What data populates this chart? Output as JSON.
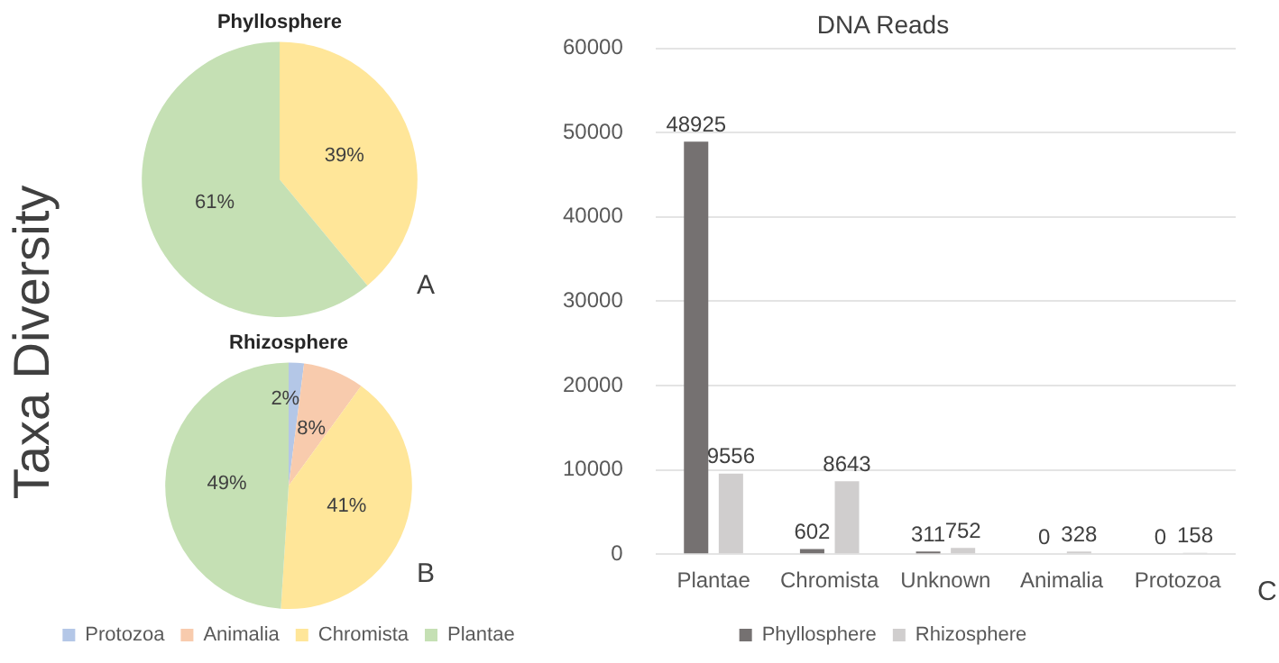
{
  "chart_data": [
    {
      "type": "pie",
      "title": "Phyllosphere",
      "categories": [
        null,
        null
      ],
      "values": [
        39,
        61
      ],
      "colors": [
        "#ffe699",
        "#c5e0b4"
      ],
      "value_labels": [
        "39%",
        "61%"
      ],
      "legend": false,
      "annotations": [
        "Taxa Diversity",
        "A"
      ]
    },
    {
      "type": "pie",
      "title": "Rhizosphere",
      "categories": [
        "Protozoa",
        "Animalia",
        "Chromista",
        "Plantae"
      ],
      "values": [
        2,
        8,
        41,
        49
      ],
      "colors": [
        "#b4c7e7",
        "#f8cbad",
        "#ffe699",
        "#c5e0b4"
      ],
      "value_labels": [
        "2%",
        "8%",
        "41%",
        "49%"
      ],
      "legend": "bottom",
      "annotations": [
        "B"
      ]
    },
    {
      "type": "bar",
      "title": "DNA Reads",
      "categories": [
        "Plantae",
        "Chromista",
        "Unknown",
        "Animalia",
        "Protozoa"
      ],
      "series": [
        {
          "name": "Phyllosphere",
          "color": "#757171",
          "values": [
            48925,
            602,
            311,
            0,
            0
          ]
        },
        {
          "name": "Rhizosphere",
          "color": "#d0cece",
          "values": [
            9556,
            8643,
            752,
            328,
            158
          ]
        }
      ],
      "ylim": [
        0,
        60000
      ],
      "yticks": [
        0,
        10000,
        20000,
        30000,
        40000,
        50000,
        60000
      ],
      "grid": "y",
      "legend": "bottom",
      "data_labels": true,
      "annotations": [
        "C"
      ]
    }
  ]
}
